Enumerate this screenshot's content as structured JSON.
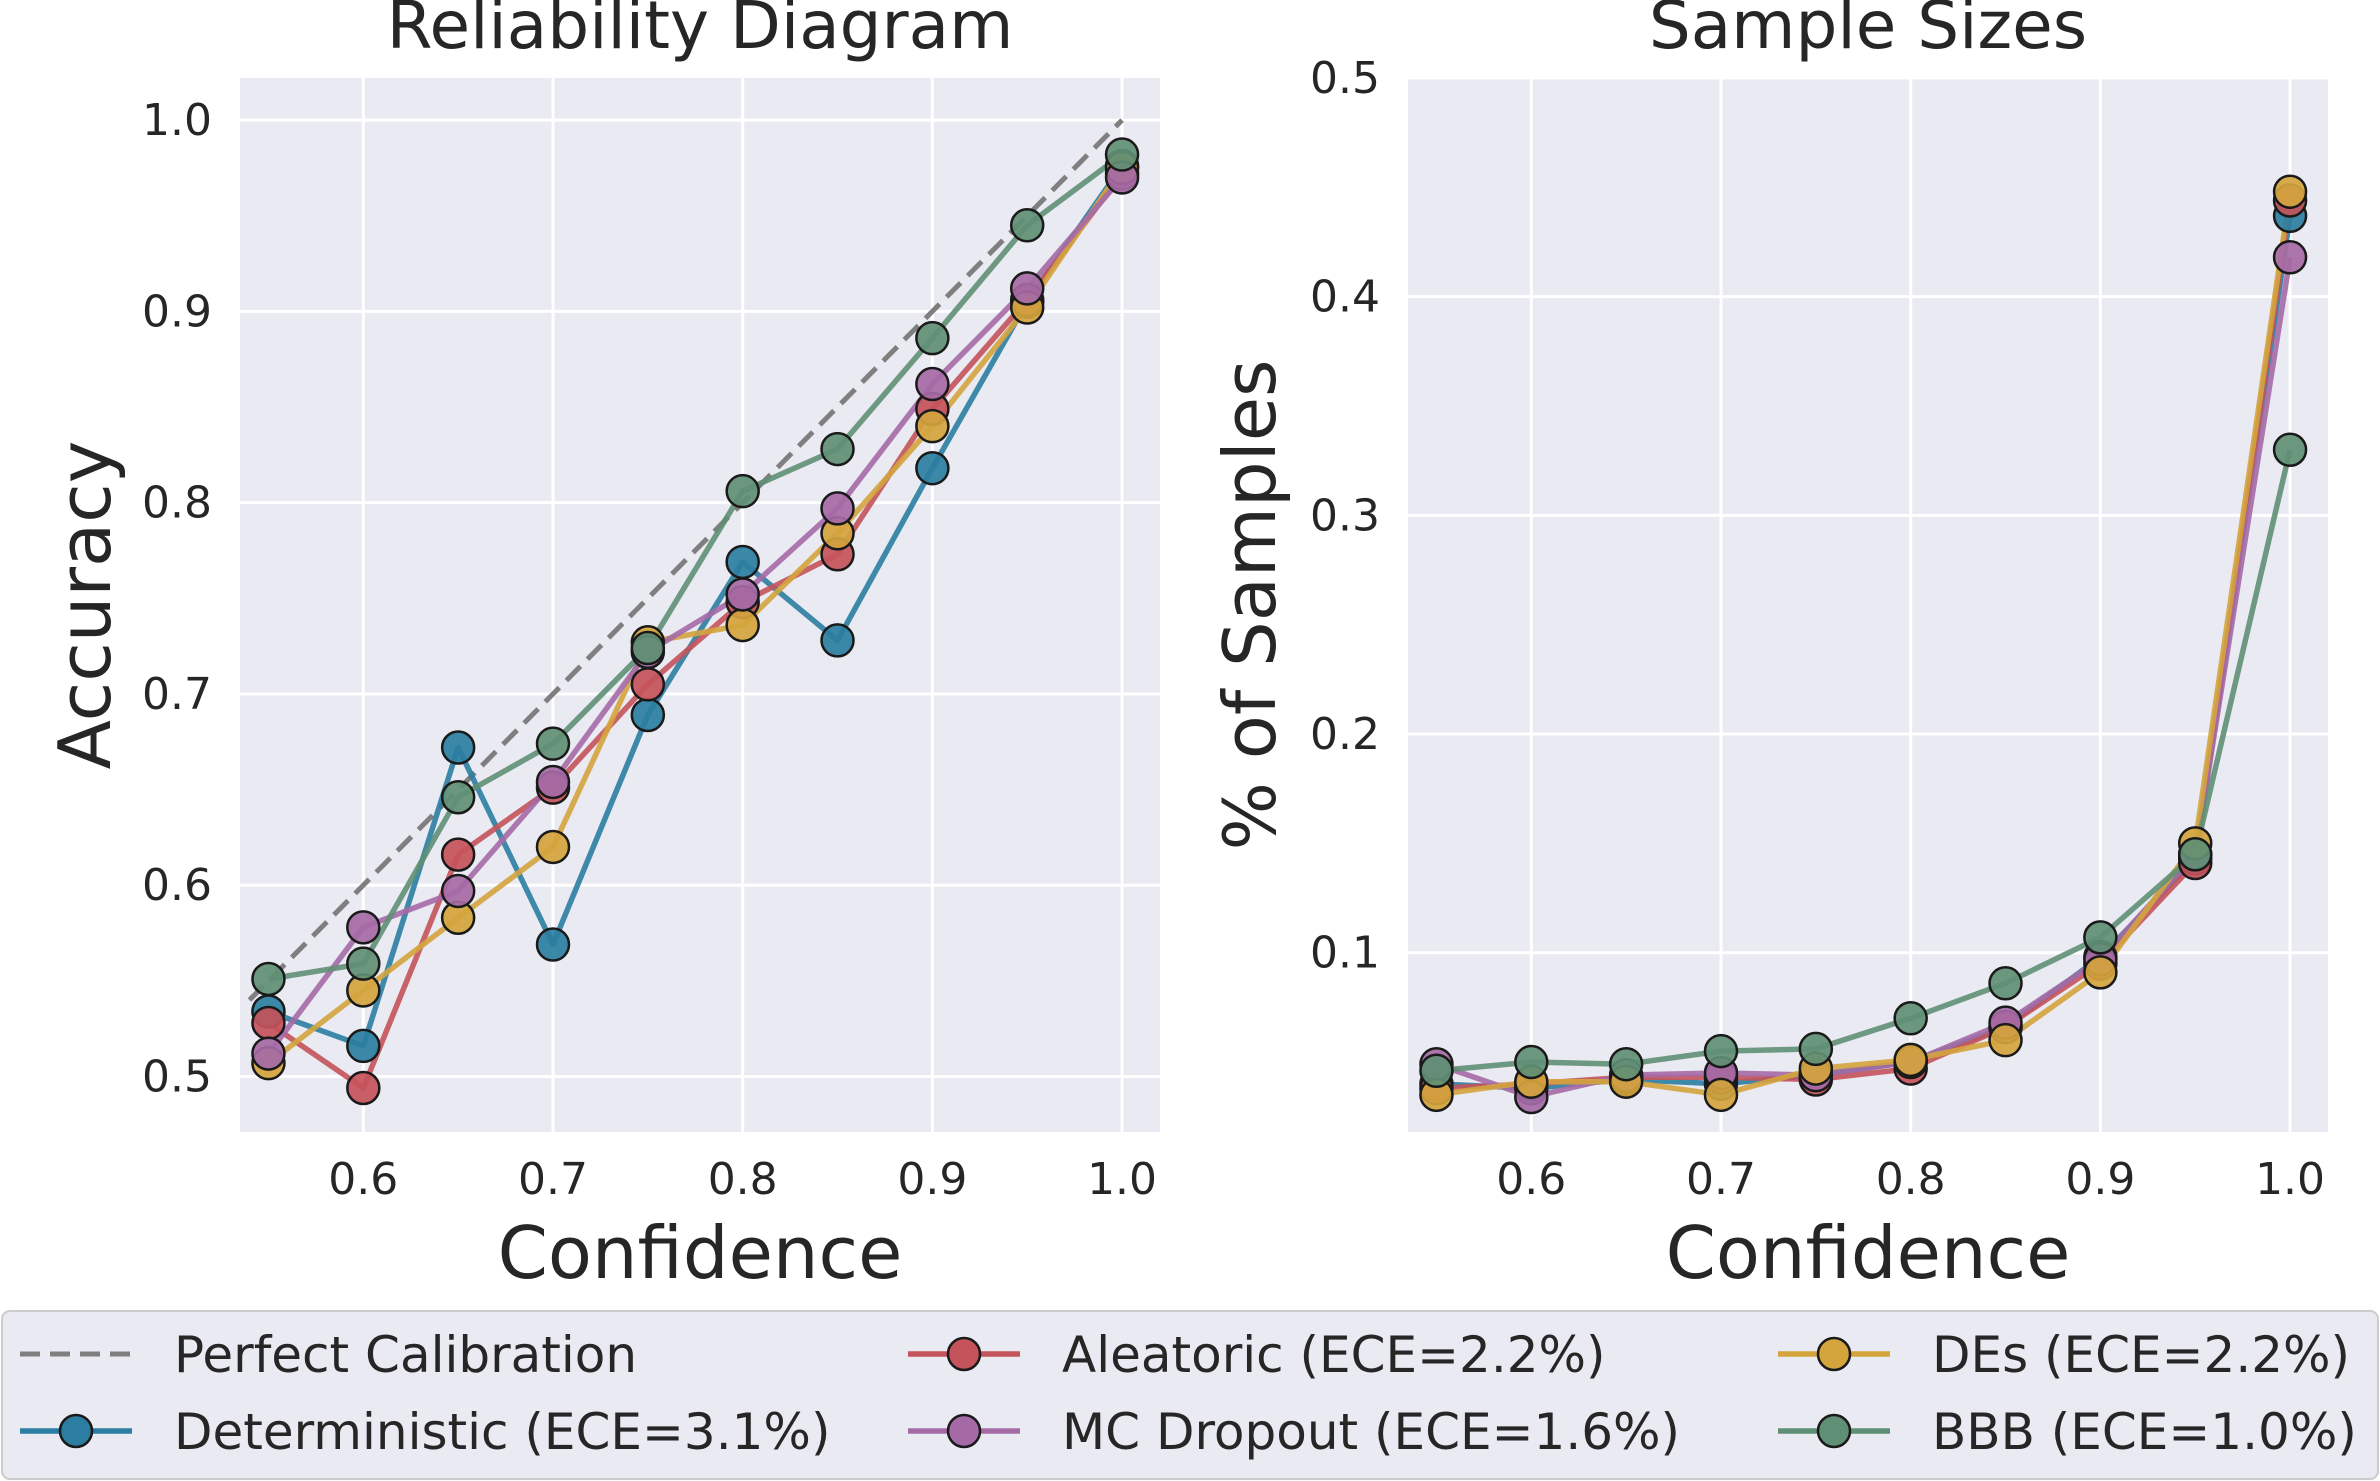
{
  "chart_data": [
    {
      "type": "line",
      "title": "Reliability Diagram",
      "xlabel": "Confidence",
      "ylabel": "Accuracy",
      "xlim": [
        0.535,
        1.02
      ],
      "ylim": [
        0.471,
        1.022
      ],
      "xticks": [
        0.6,
        0.7,
        0.8,
        0.9,
        1.0
      ],
      "yticks": [
        0.5,
        0.6,
        0.7,
        0.8,
        0.9,
        1.0
      ],
      "xtick_labels": [
        "0.6",
        "0.7",
        "0.8",
        "0.9",
        "1.0"
      ],
      "ytick_labels": [
        "0.5",
        "0.6",
        "0.7",
        "0.8",
        "0.9",
        "1.0"
      ],
      "grid": true,
      "reference_line": {
        "name": "Perfect Calibration",
        "x": [
          0.54,
          1.0
        ],
        "y": [
          0.54,
          1.0
        ],
        "color": "#7f7f7f"
      },
      "x": [
        0.55,
        0.6,
        0.65,
        0.7,
        0.75,
        0.8,
        0.85,
        0.9,
        0.95,
        1.0
      ],
      "series": [
        {
          "name": "Deterministic",
          "color": "#2b7ea1",
          "values": [
            0.534,
            0.516,
            0.672,
            0.569,
            0.689,
            0.769,
            0.728,
            0.818,
            0.905,
            0.976
          ]
        },
        {
          "name": "Aleatoric",
          "color": "#c4535b",
          "values": [
            0.528,
            0.494,
            0.616,
            0.651,
            0.705,
            0.748,
            0.773,
            0.849,
            0.906,
            0.972
          ]
        },
        {
          "name": "DEs",
          "color": "#d4a43d",
          "values": [
            0.507,
            0.545,
            0.583,
            0.62,
            0.727,
            0.736,
            0.784,
            0.84,
            0.902,
            0.975
          ]
        },
        {
          "name": "MC Dropout",
          "color": "#a56aa6",
          "values": [
            0.512,
            0.578,
            0.597,
            0.654,
            0.722,
            0.752,
            0.797,
            0.862,
            0.912,
            0.97
          ]
        },
        {
          "name": "BBB",
          "color": "#5f8f74",
          "values": [
            0.551,
            0.559,
            0.646,
            0.674,
            0.724,
            0.806,
            0.828,
            0.886,
            0.945,
            0.982
          ]
        }
      ]
    },
    {
      "type": "line",
      "title": "Sample Sizes",
      "xlabel": "Confidence",
      "ylabel": "% of Samples",
      "xlim": [
        0.535,
        1.02
      ],
      "ylim": [
        0.018,
        0.5
      ],
      "xticks": [
        0.6,
        0.7,
        0.8,
        0.9,
        1.0
      ],
      "yticks": [
        0.1,
        0.2,
        0.3,
        0.4,
        0.5
      ],
      "xtick_labels": [
        "0.6",
        "0.7",
        "0.8",
        "0.9",
        "1.0"
      ],
      "ytick_labels": [
        "0.1",
        "0.2",
        "0.3",
        "0.4",
        "0.5"
      ],
      "grid": true,
      "x": [
        0.55,
        0.6,
        0.65,
        0.7,
        0.75,
        0.8,
        0.85,
        0.9,
        0.95,
        1.0
      ],
      "series": [
        {
          "name": "Deterministic",
          "color": "#2b7ea1",
          "values": [
            0.04,
            0.038,
            0.042,
            0.04,
            0.044,
            0.05,
            0.066,
            0.098,
            0.143,
            0.437
          ]
        },
        {
          "name": "Aleatoric",
          "color": "#c4535b",
          "values": [
            0.038,
            0.04,
            0.043,
            0.043,
            0.042,
            0.047,
            0.066,
            0.095,
            0.141,
            0.444
          ]
        },
        {
          "name": "MC Dropout",
          "color": "#a56aa6",
          "values": [
            0.049,
            0.034,
            0.044,
            0.045,
            0.044,
            0.05,
            0.068,
            0.097,
            0.145,
            0.418
          ]
        },
        {
          "name": "DEs",
          "color": "#d4a43d",
          "values": [
            0.035,
            0.041,
            0.041,
            0.035,
            0.047,
            0.051,
            0.06,
            0.091,
            0.15,
            0.448
          ]
        },
        {
          "name": "BBB",
          "color": "#5f8f74",
          "values": [
            0.046,
            0.05,
            0.049,
            0.055,
            0.056,
            0.07,
            0.086,
            0.107,
            0.145,
            0.33
          ]
        }
      ]
    }
  ],
  "legend": {
    "placement": "bottom",
    "entries": [
      {
        "label": "Perfect Calibration",
        "color": "#7f7f7f",
        "style": "dashed"
      },
      {
        "label": "Deterministic (ECE=3.1%)",
        "color": "#2b7ea1",
        "style": "line-marker"
      },
      {
        "label": "Aleatoric (ECE=2.2%)",
        "color": "#c4535b",
        "style": "line-marker"
      },
      {
        "label": "MC Dropout (ECE=1.6%)",
        "color": "#a56aa6",
        "style": "line-marker"
      },
      {
        "label": "DEs (ECE=2.2%)",
        "color": "#d4a43d",
        "style": "line-marker"
      },
      {
        "label": "BBB (ECE=1.0%)",
        "color": "#5f8f74",
        "style": "line-marker"
      }
    ]
  },
  "colors": {
    "axes_background": "#eaeaf2",
    "grid": "#ffffff",
    "text": "#262626",
    "marker_edge": "#1a1a1a"
  }
}
